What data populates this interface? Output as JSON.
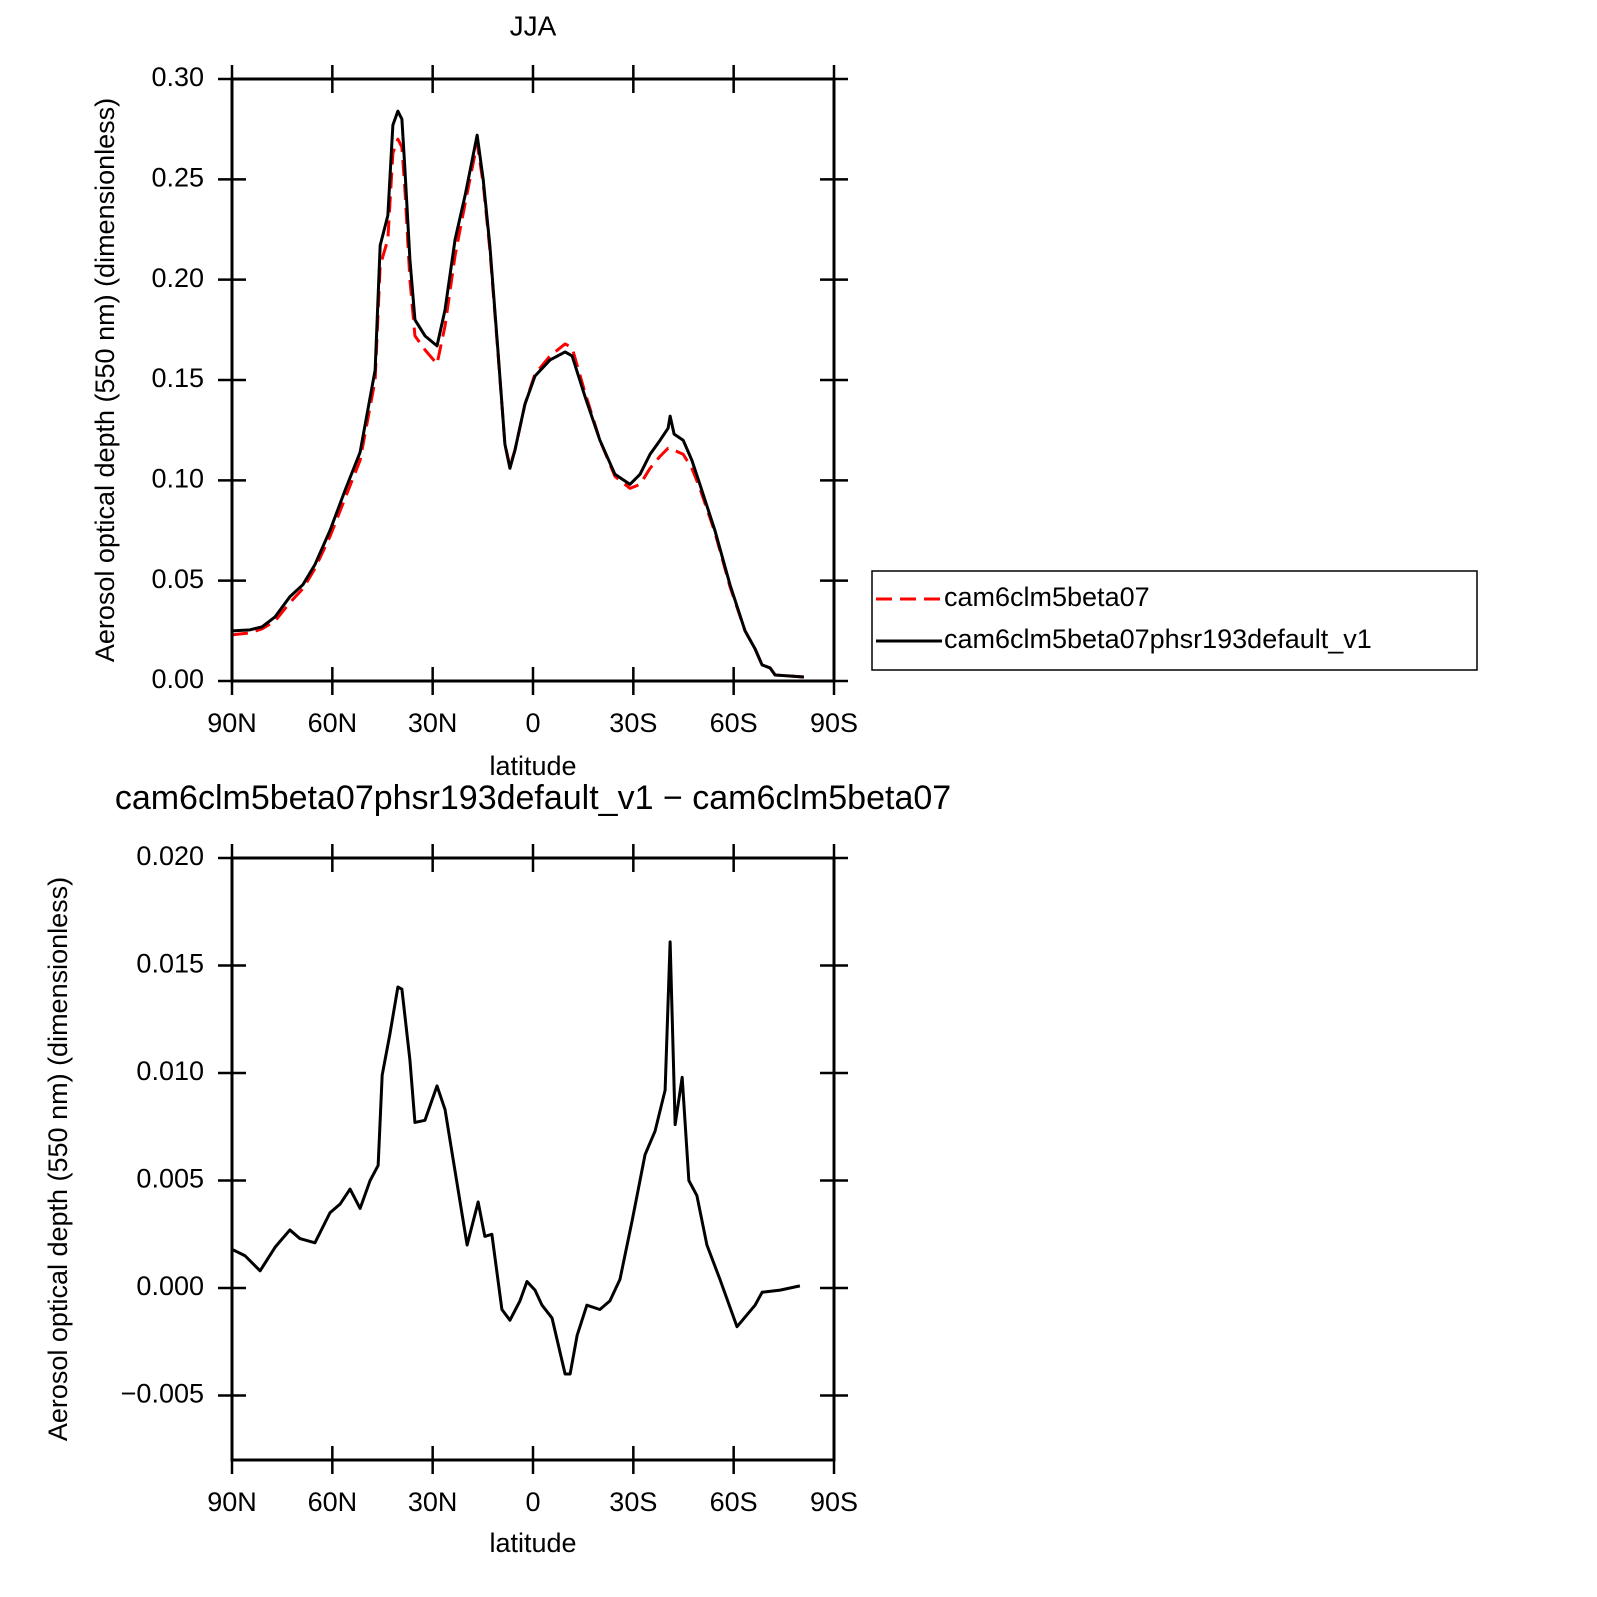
{
  "chart_data": [
    {
      "type": "line",
      "title": "JJA",
      "x_label": "latitude",
      "y_label": "Aerosol optical depth (550 nm) (dimensionless)",
      "x": [
        90,
        84.6,
        81.0,
        77.1,
        72.7,
        68.8,
        65.2,
        60.7,
        56.2,
        51.7,
        47.2,
        45.7,
        43.4,
        41.9,
        40.4,
        39.2,
        38.3,
        36.8,
        35.3,
        32.3,
        28.7,
        26.3,
        23.3,
        20.3,
        16.7,
        14.9,
        12.9,
        10.5,
        8.4,
        6.9,
        5.4,
        2.4,
        -0.6,
        -5.1,
        -9.6,
        -11.7,
        -15.5,
        -20.0,
        -24.5,
        -29.0,
        -32.0,
        -35.0,
        -38.0,
        -40.4,
        -41.0,
        -42.2,
        -44.9,
        -47.5,
        -49.9,
        -54.4,
        -58.9,
        -63.4,
        -66.4,
        -68.5,
        -70.9,
        -72.4,
        -76.8,
        -81.0
      ],
      "xlim": [
        90,
        -90
      ],
      "xticks": [
        {
          "value": 90,
          "label": "90N"
        },
        {
          "value": 60,
          "label": "60N"
        },
        {
          "value": 30,
          "label": "30N"
        },
        0,
        {
          "value": -30,
          "label": "30S"
        },
        {
          "value": -60,
          "label": "60S"
        },
        {
          "value": -90,
          "label": "90S"
        }
      ],
      "ylim": [
        0,
        0.3
      ],
      "yticks": [
        {
          "value": 0,
          "label": "0.00"
        },
        0.05,
        {
          "value": 0.1,
          "label": "0.10"
        },
        0.15,
        {
          "value": 0.2,
          "label": "0.20"
        },
        0.25,
        {
          "value": 0.3,
          "label": "0.30"
        }
      ],
      "legend": "right",
      "series": [
        {
          "name": "cam6clm5beta07",
          "color": "#ff0000",
          "dash": "dashed",
          "values": [
            0.023,
            0.024,
            0.026,
            0.03,
            0.039,
            0.046,
            0.056,
            0.072,
            0.091,
            0.11,
            0.15,
            0.207,
            0.22,
            0.263,
            0.27,
            0.266,
            0.245,
            0.2,
            0.172,
            0.165,
            0.158,
            0.177,
            0.212,
            0.238,
            0.268,
            0.248,
            0.215,
            0.164,
            0.118,
            0.107,
            0.115,
            0.138,
            0.153,
            0.162,
            0.168,
            0.166,
            0.144,
            0.12,
            0.102,
            0.096,
            0.098,
            0.106,
            0.112,
            0.116,
            0.116,
            0.115,
            0.113,
            0.106,
            0.096,
            0.074,
            0.047,
            0.025,
            0.016,
            0.008,
            0.0065,
            0.003,
            0.0025,
            0.002
          ]
        },
        {
          "name": "cam6clm5beta07phsr193default_v1",
          "color": "#000000",
          "dash": "solid",
          "values": [
            0.025,
            0.0255,
            0.027,
            0.032,
            0.042,
            0.048,
            0.058,
            0.075,
            0.095,
            0.114,
            0.155,
            0.217,
            0.232,
            0.277,
            0.284,
            0.28,
            0.255,
            0.21,
            0.18,
            0.172,
            0.167,
            0.185,
            0.22,
            0.242,
            0.272,
            0.25,
            0.217,
            0.165,
            0.118,
            0.106,
            0.115,
            0.138,
            0.152,
            0.16,
            0.164,
            0.162,
            0.142,
            0.12,
            0.103,
            0.098,
            0.103,
            0.113,
            0.12,
            0.126,
            0.132,
            0.123,
            0.12,
            0.11,
            0.098,
            0.075,
            0.048,
            0.025,
            0.016,
            0.008,
            0.0065,
            0.003,
            0.0025,
            0.002
          ]
        }
      ]
    },
    {
      "type": "line",
      "title": "cam6clm5beta07phsr193default_v1 − cam6clm5beta07",
      "x_label": "latitude",
      "y_label": "Aerosol optical depth (550 nm) (dimensionless)",
      "x": [
        90,
        86.1,
        81.6,
        77.1,
        72.7,
        69.7,
        65.2,
        60.7,
        57.7,
        54.7,
        51.7,
        48.7,
        46.3,
        45.1,
        42.8,
        40.4,
        39.2,
        36.8,
        35.3,
        32.3,
        28.7,
        26.3,
        23.9,
        19.7,
        16.4,
        14.4,
        12.3,
        9.3,
        6.9,
        3.9,
        1.8,
        -0.6,
        -2.7,
        -5.7,
        -9.6,
        -11.1,
        -13.2,
        -16.1,
        -20.0,
        -23.0,
        -26.0,
        -29.6,
        -33.5,
        -36.5,
        -39.5,
        -41.0,
        -42.5,
        -44.6,
        -46.6,
        -49.0,
        -52.0,
        -55.9,
        -61.0,
        -66.4,
        -68.5,
        -73.9,
        -79.8
      ],
      "xlim": [
        90,
        -90
      ],
      "xticks": [
        {
          "value": 90,
          "label": "90N"
        },
        {
          "value": 60,
          "label": "60N"
        },
        {
          "value": 30,
          "label": "30N"
        },
        0,
        {
          "value": -30,
          "label": "30S"
        },
        {
          "value": -60,
          "label": "60S"
        },
        {
          "value": -90,
          "label": "90S"
        }
      ],
      "ylim": [
        -0.008,
        0.02
      ],
      "yticks": [
        {
          "value": -0.005,
          "label": "−0.005"
        },
        {
          "value": 0,
          "label": "0.000"
        },
        0.005,
        {
          "value": 0.01,
          "label": "0.010"
        },
        0.015,
        {
          "value": 0.02,
          "label": "0.020"
        }
      ],
      "series": [
        {
          "color": "#000000",
          "dash": "solid",
          "values": [
            0.0018,
            0.0015,
            0.0008,
            0.0019,
            0.0027,
            0.0023,
            0.0021,
            0.0035,
            0.0039,
            0.0046,
            0.0037,
            0.005,
            0.0057,
            0.0099,
            0.0118,
            0.014,
            0.0139,
            0.0106,
            0.0077,
            0.0078,
            0.0094,
            0.0083,
            0.006,
            0.002,
            0.004,
            0.0024,
            0.0025,
            -0.001,
            -0.0015,
            -0.0006,
            0.0003,
            -0.0001,
            -0.0008,
            -0.0014,
            -0.004,
            -0.004,
            -0.0022,
            -0.0008,
            -0.001,
            -0.0006,
            0.0004,
            0.0031,
            0.0062,
            0.0073,
            0.0092,
            0.0161,
            0.0076,
            0.0098,
            0.005,
            0.0043,
            0.002,
            0.0004,
            -0.0018,
            -0.0008,
            -0.0002,
            -0.0001,
            0.0001
          ]
        }
      ]
    }
  ]
}
